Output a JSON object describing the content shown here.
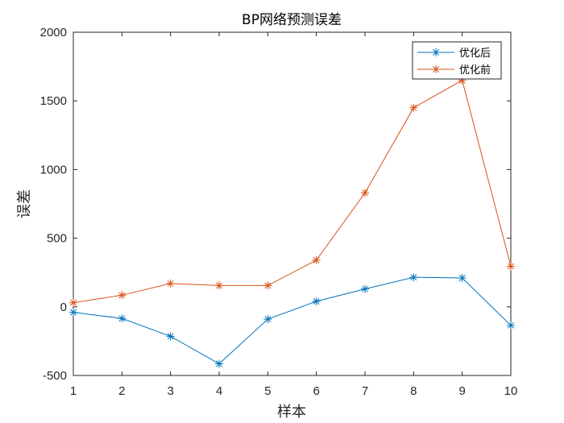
{
  "chart_data": {
    "type": "line",
    "title": "BP网络预测误差",
    "xlabel": "样本",
    "ylabel": "误差",
    "x": [
      1,
      2,
      3,
      4,
      5,
      6,
      7,
      8,
      9,
      10
    ],
    "xlim": [
      1,
      10
    ],
    "ylim": [
      -500,
      2000
    ],
    "xticks": [
      "1",
      "2",
      "3",
      "4",
      "5",
      "6",
      "7",
      "8",
      "9",
      "10"
    ],
    "yticks": [
      -500,
      0,
      500,
      1000,
      1500,
      2000
    ],
    "ytick_labels": [
      "-500",
      "0",
      "500",
      "1000",
      "1500",
      "2000"
    ],
    "grid": false,
    "legend_position": "top-right",
    "series": [
      {
        "name": "优化后",
        "color": "#0072BD",
        "marker": "asterisk",
        "values": [
          -40,
          -85,
          -215,
          -415,
          -90,
          40,
          130,
          215,
          210,
          -135
        ]
      },
      {
        "name": "优化前",
        "color": "#D95319",
        "marker": "asterisk",
        "values": [
          30,
          85,
          170,
          155,
          155,
          340,
          830,
          1450,
          1650,
          295
        ]
      }
    ]
  }
}
